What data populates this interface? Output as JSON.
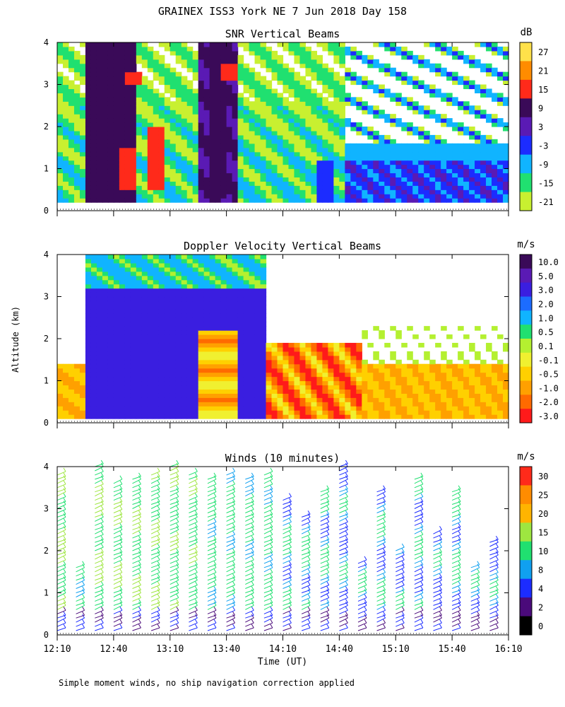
{
  "header": {
    "title": "GRAINEX ISS3 York NE   7 Jun 2018 Day 158"
  },
  "panels": {
    "snr_title": "SNR Vertical Beams",
    "doppler_title": "Doppler Velocity Vertical Beams",
    "winds_title": "Winds (10 minutes)"
  },
  "axes": {
    "ylabel": "Altitude (km)",
    "xlabel": "Time (UT)",
    "y_ticks": [
      "0",
      "1",
      "2",
      "3",
      "4"
    ],
    "x_ticks": [
      "12:10",
      "12:40",
      "13:10",
      "13:40",
      "14:10",
      "14:40",
      "15:10",
      "15:40",
      "16:10"
    ]
  },
  "colorbars": {
    "snr": {
      "unit": "dB",
      "labels": [
        "27",
        "21",
        "15",
        "9",
        "3",
        "-3",
        "-9",
        "-15",
        "-21"
      ],
      "colors": [
        "#ffe14a",
        "#ff8c00",
        "#ff2a1a",
        "#3a0a58",
        "#5a1ab4",
        "#1c2cff",
        "#10b4ff",
        "#20e070",
        "#c8f030"
      ]
    },
    "doppler": {
      "unit": "m/s",
      "labels": [
        "10.0",
        "5.0",
        "3.0",
        "2.0",
        "1.0",
        "0.5",
        "0.1",
        "-0.1",
        "-0.5",
        "-1.0",
        "-2.0",
        "-3.0"
      ],
      "colors": [
        "#3a0a58",
        "#5a1ab4",
        "#3a1ee0",
        "#1c6cff",
        "#10b4ff",
        "#20e070",
        "#b4f030",
        "#f0f030",
        "#ffd000",
        "#ffa000",
        "#ff6a00",
        "#ff1a1a"
      ]
    },
    "winds": {
      "unit": "m/s",
      "labels": [
        "30",
        "25",
        "20",
        "15",
        "10",
        "8",
        "4",
        "2",
        "0"
      ],
      "colors": [
        "#ff2a1a",
        "#ff8c00",
        "#ffb400",
        "#9ee640",
        "#20e070",
        "#10a0f0",
        "#1c2cff",
        "#4a0a7a",
        "#000000"
      ]
    }
  },
  "chart_data": [
    {
      "type": "heatmap",
      "title": "SNR Vertical Beams",
      "xlabel": "",
      "ylabel": "Altitude (km)",
      "x_range": [
        "12:10",
        "16:10"
      ],
      "ylim": [
        0,
        4
      ],
      "colorbar_unit": "dB",
      "colorbar_range": [
        -21,
        33
      ],
      "features": [
        {
          "time": "12:30",
          "altitude_range": [
            0.2,
            4
          ],
          "snr_db": 9
        },
        {
          "time": "12:45",
          "altitude_range": [
            0.5,
            1.5
          ],
          "snr_db": 15
        },
        {
          "time": "12:50",
          "altitude_range": [
            3.0,
            3.3
          ],
          "snr_db": 15
        },
        {
          "time": "13:00",
          "altitude_range": [
            0.5,
            2.0
          ],
          "snr_db": 15
        },
        {
          "time": "13:35",
          "altitude_range": [
            0.3,
            4
          ],
          "snr_db": 9
        },
        {
          "time": "13:40",
          "altitude_range": [
            3.1,
            3.5
          ],
          "snr_db": 15
        },
        {
          "time": "14:30",
          "altitude_range": [
            0.2,
            1.2
          ],
          "snr_db": -3
        },
        {
          "time": "15:30",
          "altitude_range": [
            1.2,
            1.6
          ],
          "snr_db": -15
        }
      ]
    },
    {
      "type": "heatmap",
      "title": "Doppler Velocity Vertical Beams",
      "xlabel": "",
      "ylabel": "Altitude (km)",
      "x_range": [
        "12:10",
        "16:10"
      ],
      "ylim": [
        0,
        4
      ],
      "colorbar_unit": "m/s",
      "colorbar_range": [
        -3.0,
        10.0
      ],
      "features": [
        {
          "time": "12:35",
          "altitude_range": [
            0.1,
            3.2
          ],
          "velocity_ms": 3.0
        },
        {
          "time": "13:10",
          "altitude_range": [
            0.1,
            3.0
          ],
          "velocity_ms": 3.0
        },
        {
          "time": "13:35",
          "altitude_range": [
            0.1,
            2.2
          ],
          "velocity_ms": -0.5
        },
        {
          "time": "14:10",
          "altitude_range": [
            0.3,
            1.8
          ],
          "velocity_ms": -1.0
        },
        {
          "time": "14:50",
          "altitude_range": [
            0.1,
            1.4
          ],
          "velocity_ms": -0.5
        },
        {
          "time": "15:40",
          "altitude_range": [
            0.1,
            1.4
          ],
          "velocity_ms": -0.5
        }
      ]
    },
    {
      "type": "scatter",
      "title": "Winds (10 minutes)",
      "xlabel": "Time (UT)",
      "ylabel": "Altitude (km)",
      "x_range": [
        "12:10",
        "16:10"
      ],
      "ylim": [
        0,
        4
      ],
      "colorbar_unit": "m/s",
      "colorbar_range": [
        0,
        34
      ],
      "profiles": [
        {
          "time": "12:10",
          "top_km": 3.9,
          "speed_ms": 15
        },
        {
          "time": "12:20",
          "top_km": 1.6,
          "speed_ms": 12
        },
        {
          "time": "12:30",
          "top_km": 4.0,
          "speed_ms": 15
        },
        {
          "time": "12:40",
          "top_km": 3.6,
          "speed_ms": 14
        },
        {
          "time": "12:50",
          "top_km": 3.8,
          "speed_ms": 14
        },
        {
          "time": "13:00",
          "top_km": 3.9,
          "speed_ms": 14
        },
        {
          "time": "13:10",
          "top_km": 4.0,
          "speed_ms": 13
        },
        {
          "time": "13:20",
          "top_km": 3.9,
          "speed_ms": 13
        },
        {
          "time": "13:30",
          "top_km": 3.8,
          "speed_ms": 12
        },
        {
          "time": "13:40",
          "top_km": 3.9,
          "speed_ms": 12
        },
        {
          "time": "13:50",
          "top_km": 3.8,
          "speed_ms": 12
        },
        {
          "time": "14:00",
          "top_km": 3.9,
          "speed_ms": 12
        },
        {
          "time": "14:10",
          "top_km": 3.2,
          "speed_ms": 10
        },
        {
          "time": "14:20",
          "top_km": 2.9,
          "speed_ms": 10
        },
        {
          "time": "14:30",
          "top_km": 3.5,
          "speed_ms": 10
        },
        {
          "time": "14:40",
          "top_km": 4.0,
          "speed_ms": 8
        },
        {
          "time": "14:50",
          "top_km": 1.8,
          "speed_ms": 8
        },
        {
          "time": "15:00",
          "top_km": 3.5,
          "speed_ms": 9
        },
        {
          "time": "15:10",
          "top_km": 2.0,
          "speed_ms": 8
        },
        {
          "time": "15:20",
          "top_km": 3.8,
          "speed_ms": 9
        },
        {
          "time": "15:30",
          "top_km": 2.5,
          "speed_ms": 8
        },
        {
          "time": "15:40",
          "top_km": 3.5,
          "speed_ms": 10
        },
        {
          "time": "15:50",
          "top_km": 1.6,
          "speed_ms": 8
        },
        {
          "time": "16:00",
          "top_km": 2.2,
          "speed_ms": 8
        }
      ]
    }
  ],
  "footer": {
    "note": "Simple moment winds, no ship navigation correction applied"
  }
}
